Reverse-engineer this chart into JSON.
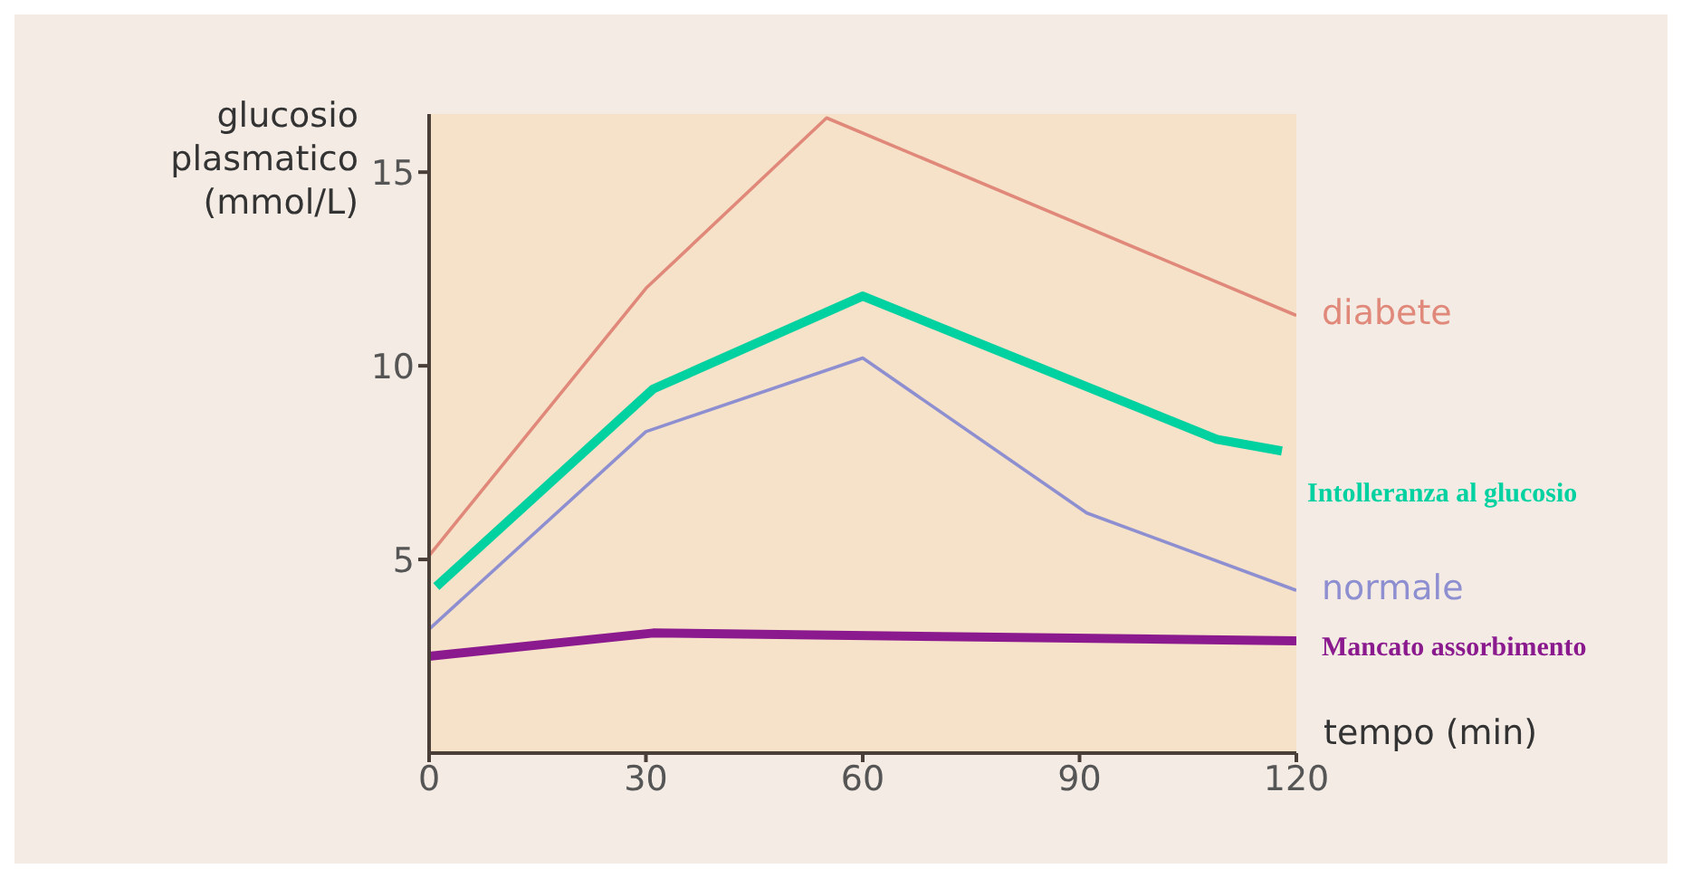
{
  "chart_data": {
    "type": "line",
    "ylabel": "glucosio plasmatico (mmol/L)",
    "xlabel": "tempo (min)",
    "xlim": [
      0,
      120
    ],
    "xticks": [
      0,
      30,
      60,
      90,
      120
    ],
    "ylim": [
      0,
      16.5
    ],
    "yticks": [
      5,
      10,
      15
    ],
    "marker": "none",
    "series": [
      {
        "name": "diabete",
        "color": "#e0897a",
        "x": [
          0,
          30,
          55,
          120
        ],
        "values": [
          5.1,
          12.0,
          16.4,
          11.3
        ]
      },
      {
        "name": "normale",
        "color": "#8e8fd0",
        "x": [
          0,
          30,
          60,
          91,
          120
        ],
        "values": [
          3.2,
          8.3,
          10.2,
          6.2,
          4.2
        ]
      },
      {
        "name": "Intolleranza al glucosio",
        "color": "#00d1a0",
        "x": [
          1,
          31,
          60,
          109,
          118
        ],
        "values": [
          4.3,
          9.4,
          11.8,
          8.1,
          7.8
        ]
      },
      {
        "name": "Mancato assorbimento",
        "color": "#8b1a8e",
        "x": [
          0,
          31,
          120
        ],
        "values": [
          2.5,
          3.1,
          2.9
        ]
      }
    ]
  }
}
